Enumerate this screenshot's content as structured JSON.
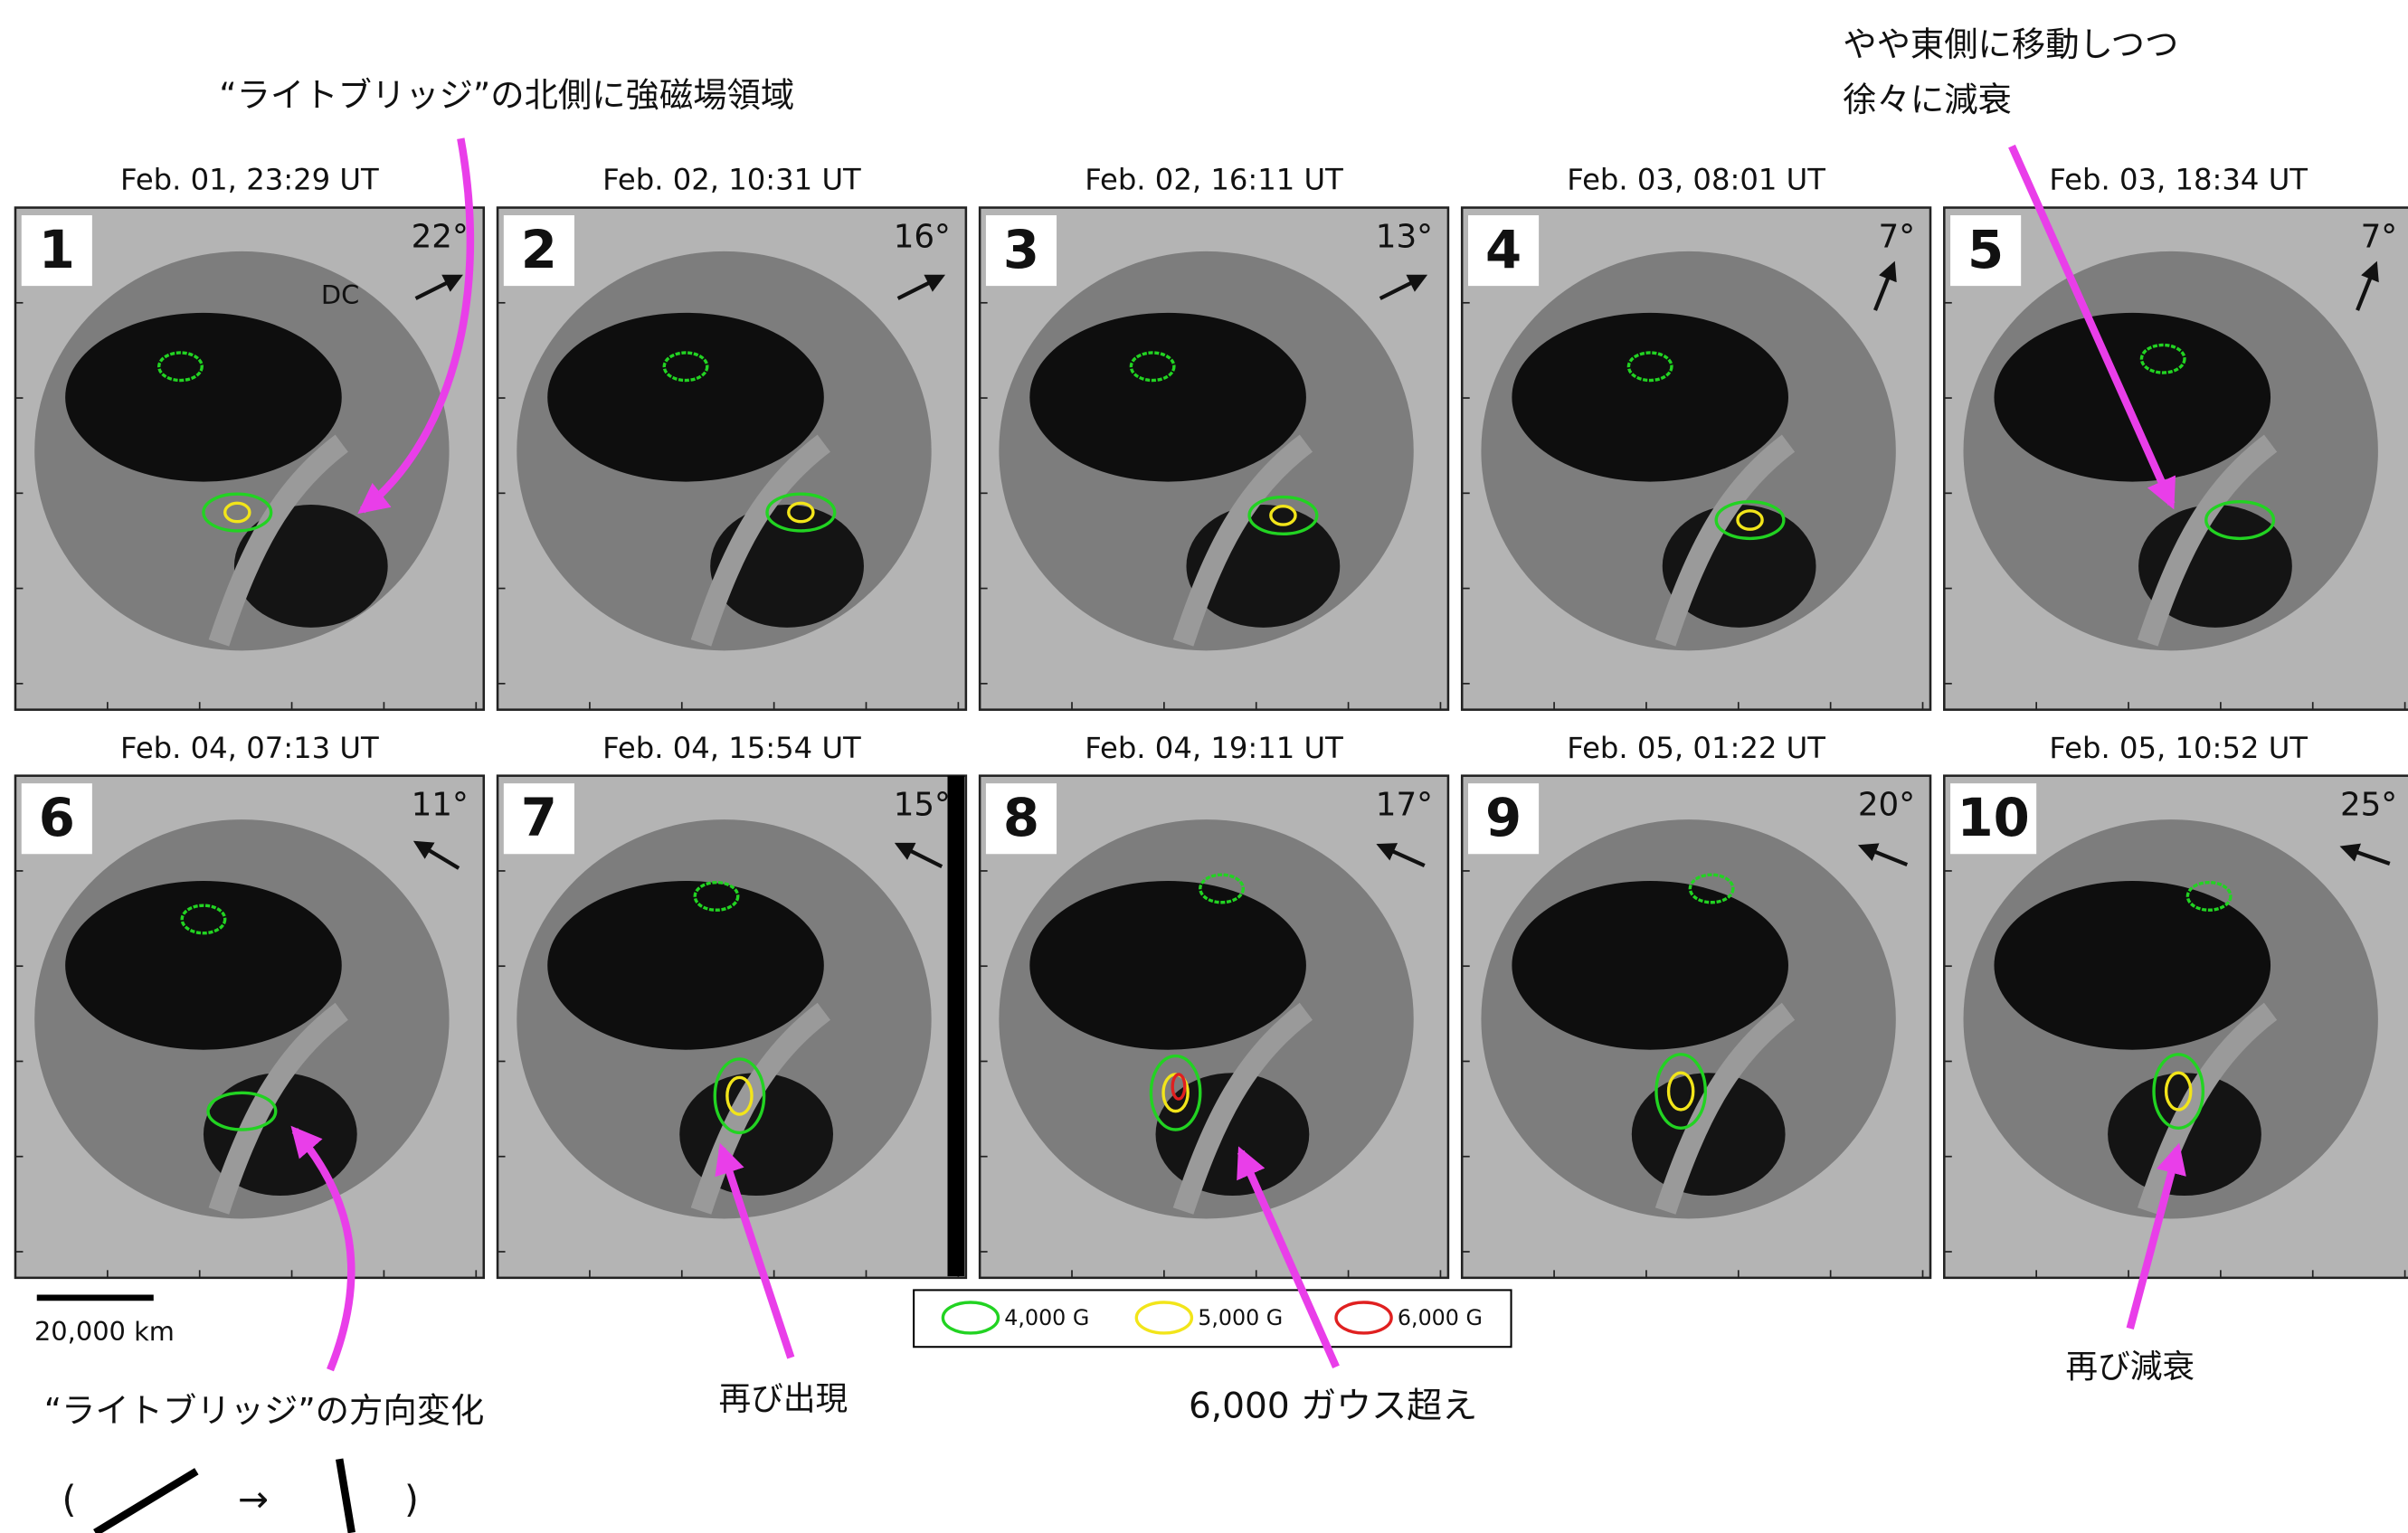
{
  "title_note": "“ライトブリッジ”の北側に強磁場領域",
  "east_note": [
    "やや東側に移動しつつ",
    "徐々に減衰"
  ],
  "panels": [
    {
      "number": "1",
      "date": "Feb. 01, 23:29 UT",
      "angle": "22°"
    },
    {
      "number": "2",
      "date": "Feb. 02, 10:31 UT",
      "angle": "16°"
    },
    {
      "number": "3",
      "date": "Feb. 02, 16:11 UT",
      "angle": "13°"
    },
    {
      "number": "4",
      "date": "Feb. 03, 08:01 UT",
      "angle": "7°"
    },
    {
      "number": "5",
      "date": "Feb. 03, 18:34 UT",
      "angle": "7°"
    },
    {
      "number": "6",
      "date": "Feb. 04, 07:13 UT",
      "angle": "11°"
    },
    {
      "number": "7",
      "date": "Feb. 04, 15:54 UT",
      "angle": "15°"
    },
    {
      "number": "8",
      "date": "Feb. 04, 19:11 UT",
      "angle": "17°"
    },
    {
      "number": "9",
      "date": "Feb. 05, 01:22 UT",
      "angle": "20°"
    },
    {
      "number": "10",
      "date": "Feb. 05, 10:52 UT",
      "angle": "25°"
    }
  ],
  "dc_label": "DC",
  "scale_bar": "20,000 km",
  "legend": [
    {
      "label": "4,000 G",
      "color": "#22d322"
    },
    {
      "label": "5,000 G",
      "color": "#f2e51a"
    },
    {
      "label": "6,000 G",
      "color": "#e02020"
    }
  ],
  "reappear_note": "再び出現",
  "exceed_note": "6,000 ガウス超え",
  "decay_note": "再び減衰",
  "orientation": {
    "title": "“ライトブリッジ”の方向変化",
    "open": "(",
    "arrow": "→",
    "close": ")"
  }
}
